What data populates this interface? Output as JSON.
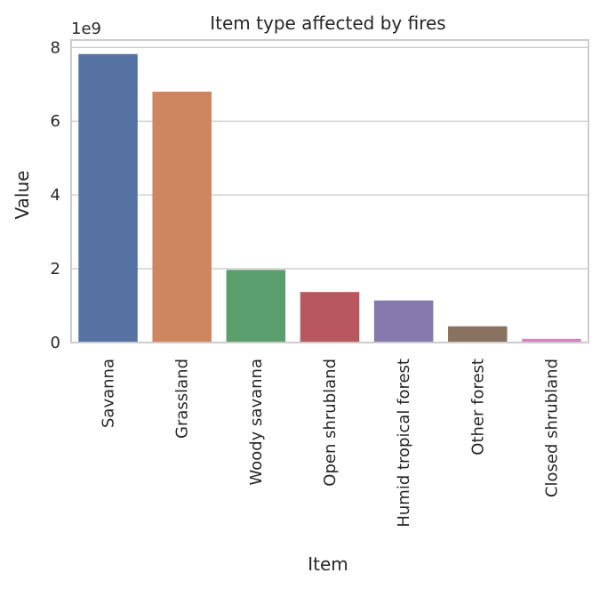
{
  "chart_data": {
    "type": "bar",
    "title": "Item type affected by fires",
    "xlabel": "Item",
    "ylabel": "Value",
    "y_offset_label": "1e9",
    "categories": [
      "Savanna",
      "Grassland",
      "Woody savanna",
      "Open shrubland",
      "Humid tropical forest",
      "Other forest",
      "Closed shrubland"
    ],
    "values": [
      7.82,
      6.8,
      1.97,
      1.37,
      1.14,
      0.44,
      0.1
    ],
    "colors": [
      "#5572a3",
      "#cd8660",
      "#5b9f6d",
      "#b8575e",
      "#8679ad",
      "#8a7261",
      "#d683be"
    ],
    "yticks": [
      0,
      2,
      4,
      6,
      8
    ],
    "ylim": [
      0,
      8.2
    ],
    "grid": true,
    "grid_axis": "y",
    "legend": "none"
  }
}
